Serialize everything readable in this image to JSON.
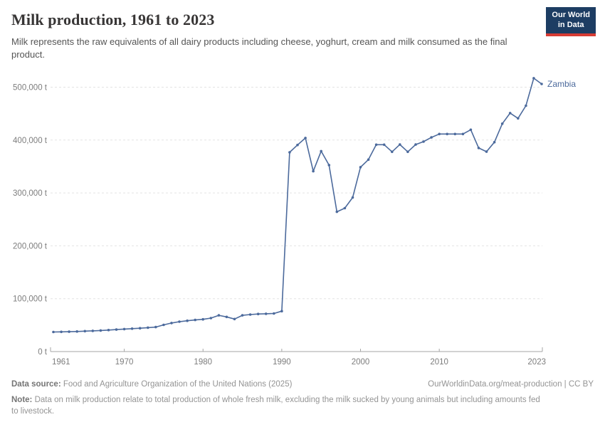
{
  "header": {
    "title": "Milk production, 1961 to 2023",
    "subtitle": "Milk represents the raw equivalents of all dairy products including cheese, yoghurt, cream and milk consumed as the final product.",
    "logo": {
      "line1": "Our World",
      "line2": "in Data",
      "bg_color": "#1d3d63",
      "accent_color": "#d73c34"
    }
  },
  "chart_data": {
    "type": "line",
    "title": "Milk production, 1961 to 2023",
    "entity": "Zambia",
    "unit": "t",
    "line_color": "#4C6A9C",
    "grid": "horizontal dashed",
    "legend_position": "end-of-line label",
    "xlim": [
      1961,
      2023
    ],
    "ylim": [
      0,
      500000
    ],
    "xticks": [
      {
        "v": 1961,
        "label": "1961"
      },
      {
        "v": 1970,
        "label": "1970"
      },
      {
        "v": 1980,
        "label": "1980"
      },
      {
        "v": 1990,
        "label": "1990"
      },
      {
        "v": 2000,
        "label": "2000"
      },
      {
        "v": 2010,
        "label": "2010"
      },
      {
        "v": 2023,
        "label": "2023"
      }
    ],
    "yticks": [
      {
        "v": 0,
        "label": "0 t"
      },
      {
        "v": 100000,
        "label": "100,000 t"
      },
      {
        "v": 200000,
        "label": "200,000 t"
      },
      {
        "v": 300000,
        "label": "300,000 t"
      },
      {
        "v": 400000,
        "label": "400,000 t"
      },
      {
        "v": 500000,
        "label": "500,000 t"
      }
    ],
    "x": [
      1961,
      1962,
      1963,
      1964,
      1965,
      1966,
      1967,
      1968,
      1969,
      1970,
      1971,
      1972,
      1973,
      1974,
      1975,
      1976,
      1977,
      1978,
      1979,
      1980,
      1981,
      1982,
      1983,
      1984,
      1985,
      1986,
      1987,
      1988,
      1989,
      1990,
      1991,
      1992,
      1993,
      1994,
      1995,
      1996,
      1997,
      1998,
      1999,
      2000,
      2001,
      2002,
      2003,
      2004,
      2005,
      2006,
      2007,
      2008,
      2009,
      2010,
      2011,
      2012,
      2013,
      2014,
      2015,
      2016,
      2017,
      2018,
      2019,
      2020,
      2021,
      2022,
      2023
    ],
    "values": [
      37000,
      37300,
      37600,
      38000,
      38600,
      39200,
      39900,
      40700,
      41600,
      42500,
      43300,
      44200,
      45200,
      46300,
      50500,
      54000,
      56500,
      58300,
      59800,
      61000,
      63200,
      68500,
      65500,
      61500,
      68500,
      70000,
      71000,
      71500,
      72000,
      76500,
      376800,
      390700,
      403900,
      341000,
      379000,
      352600,
      264400,
      271200,
      291400,
      348700,
      363000,
      391200,
      391200,
      377800,
      391500,
      377800,
      391500,
      397000,
      405000,
      411500,
      411500,
      411500,
      411500,
      419500,
      385000,
      378000,
      396000,
      431000,
      451000,
      441000,
      465000,
      517000,
      506000
    ]
  },
  "footer": {
    "source_label": "Data source:",
    "source_text": "Food and Agriculture Organization of the United Nations (2025)",
    "link": "OurWorldinData.org/meat-production | CC BY",
    "note_label": "Note:",
    "note_text": "Data on milk production relate to total production of whole fresh milk, excluding the milk sucked by young animals but including amounts fed to livestock."
  }
}
